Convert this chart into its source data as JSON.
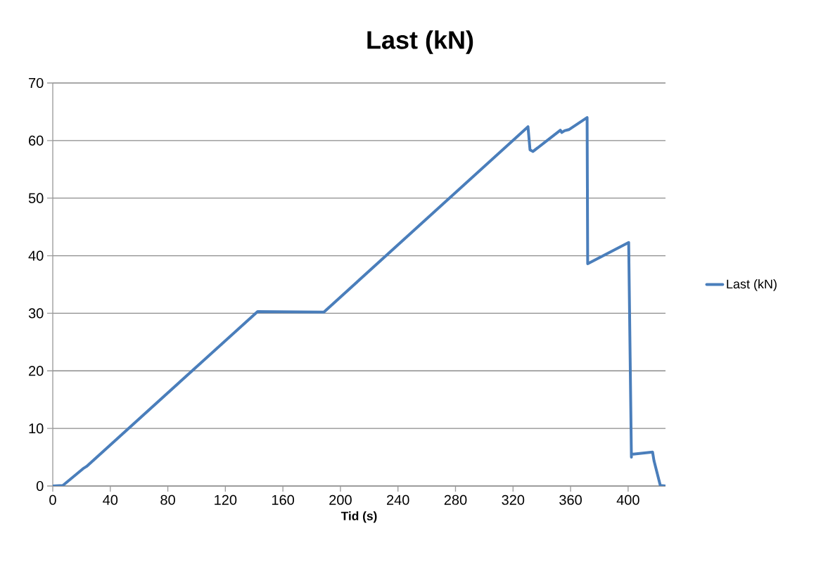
{
  "chart_data": {
    "type": "line",
    "title": "Last (kN)",
    "xlabel": "Tid (s)",
    "x": [
      0,
      7,
      21,
      23.5,
      142.4,
      188.5,
      330.4,
      331.8,
      333.8,
      352.9,
      353.9,
      355.8,
      358.8,
      371.5,
      371.9,
      400.4,
      402.3,
      402.3,
      417,
      418,
      422.4,
      426
    ],
    "series": [
      {
        "name": "Last (kN)",
        "color": "#4a7ebb",
        "values": [
          0,
          0.1,
          3.0,
          3.4,
          30.3,
          30.2,
          62.4,
          58.4,
          58.1,
          61.8,
          61.4,
          61.7,
          61.9,
          64.0,
          38.6,
          42.3,
          5.0,
          5.5,
          5.9,
          4.4,
          0.1,
          0
        ]
      }
    ],
    "xlim": [
      0,
      426
    ],
    "xticks": [
      0,
      40,
      80,
      120,
      160,
      200,
      240,
      280,
      320,
      360,
      400
    ],
    "ylim": [
      0,
      70
    ],
    "yticks": [
      0,
      10,
      20,
      30,
      40,
      50,
      60,
      70
    ],
    "grid": "y",
    "legend": "right",
    "marker": "none",
    "line_style": "solid"
  }
}
